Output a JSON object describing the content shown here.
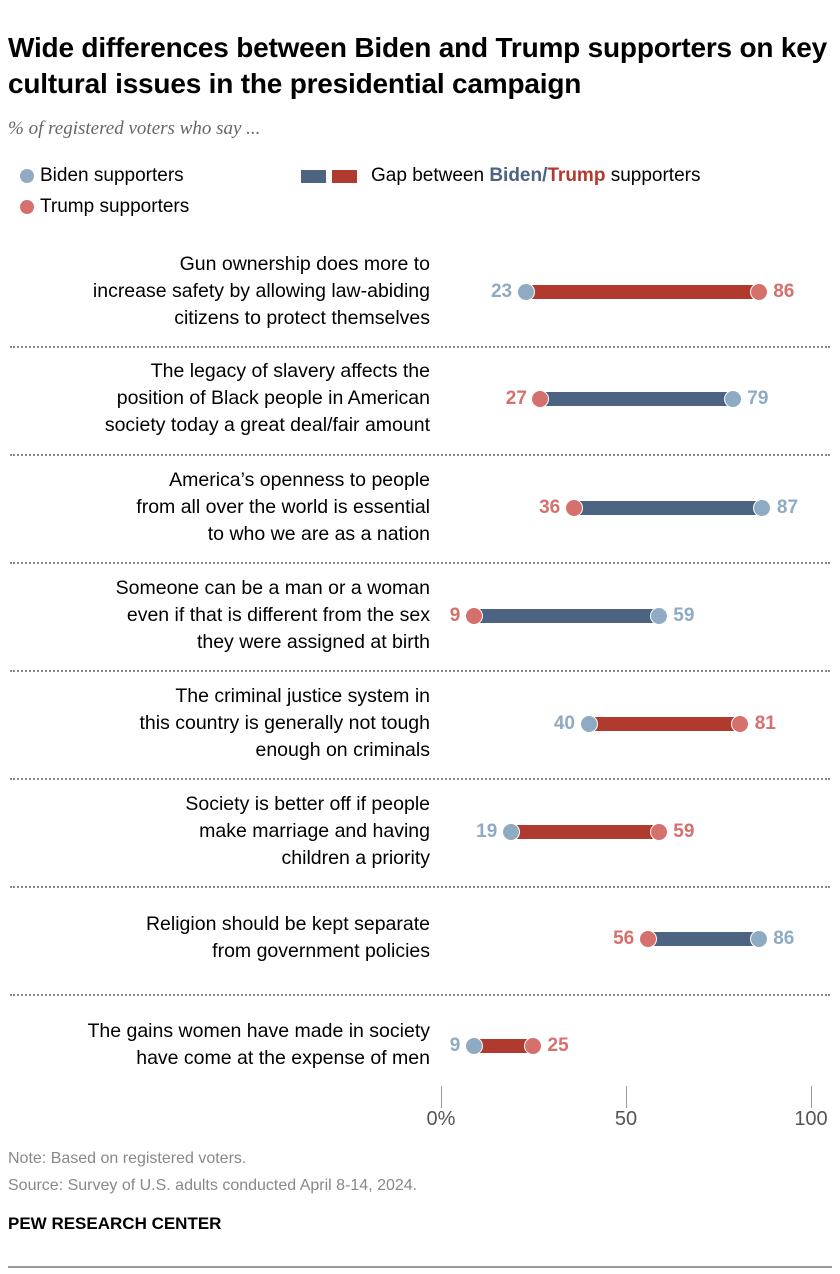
{
  "title": "Wide differences between Biden and Trump supporters on key cultural issues in the presidential campaign",
  "subtitle": "% of registered voters who say ...",
  "legend": {
    "biden": "Biden supporters",
    "trump": "Trump supporters",
    "gap_prefix": "Gap between ",
    "gap_biden": "Biden",
    "gap_slash": "/",
    "gap_trump": "Trump",
    "gap_suffix": " supporters"
  },
  "colors": {
    "biden_dot": "#8faac3",
    "trump_dot": "#d6706c",
    "biden_bar": "#4c6381",
    "trump_bar": "#b03a2e"
  },
  "chart_data": {
    "type": "dot-range",
    "xlim": [
      0,
      100
    ],
    "ticks": [
      "0%",
      "50",
      "100"
    ],
    "tick_values": [
      0,
      50,
      100
    ],
    "series": [
      "Biden supporters",
      "Trump supporters"
    ],
    "rows": [
      {
        "label": [
          "Gun ownership does more to",
          "increase safety by allowing law-abiding",
          "citizens to protect themselves"
        ],
        "biden": 23,
        "trump": 86
      },
      {
        "label": [
          "The legacy of slavery affects the",
          "position of Black people in American",
          "society today a great deal/fair amount"
        ],
        "biden": 79,
        "trump": 27
      },
      {
        "label": [
          "America’s openness to people",
          "from all over the world is essential",
          "to who we are as a nation"
        ],
        "biden": 87,
        "trump": 36
      },
      {
        "label": [
          "Someone can be a man or a woman",
          "even if that is different from the sex",
          "they were assigned at birth"
        ],
        "biden": 59,
        "trump": 9
      },
      {
        "label": [
          "The criminal justice system in",
          "this country is generally not tough",
          "enough on criminals"
        ],
        "biden": 40,
        "trump": 81
      },
      {
        "label": [
          "Society is better off if people",
          "make marriage and having",
          "children a priority"
        ],
        "biden": 19,
        "trump": 59
      },
      {
        "label": [
          "Religion should be kept separate",
          "from government policies"
        ],
        "biden": 86,
        "trump": 56
      },
      {
        "label": [
          "The gains women have made in society",
          "have come at the expense of men"
        ],
        "biden": 9,
        "trump": 25
      }
    ]
  },
  "footer": {
    "note": "Note: Based on registered voters.",
    "source": "Source: Survey of U.S. adults conducted April 8-14, 2024.",
    "brand": "PEW RESEARCH CENTER"
  }
}
